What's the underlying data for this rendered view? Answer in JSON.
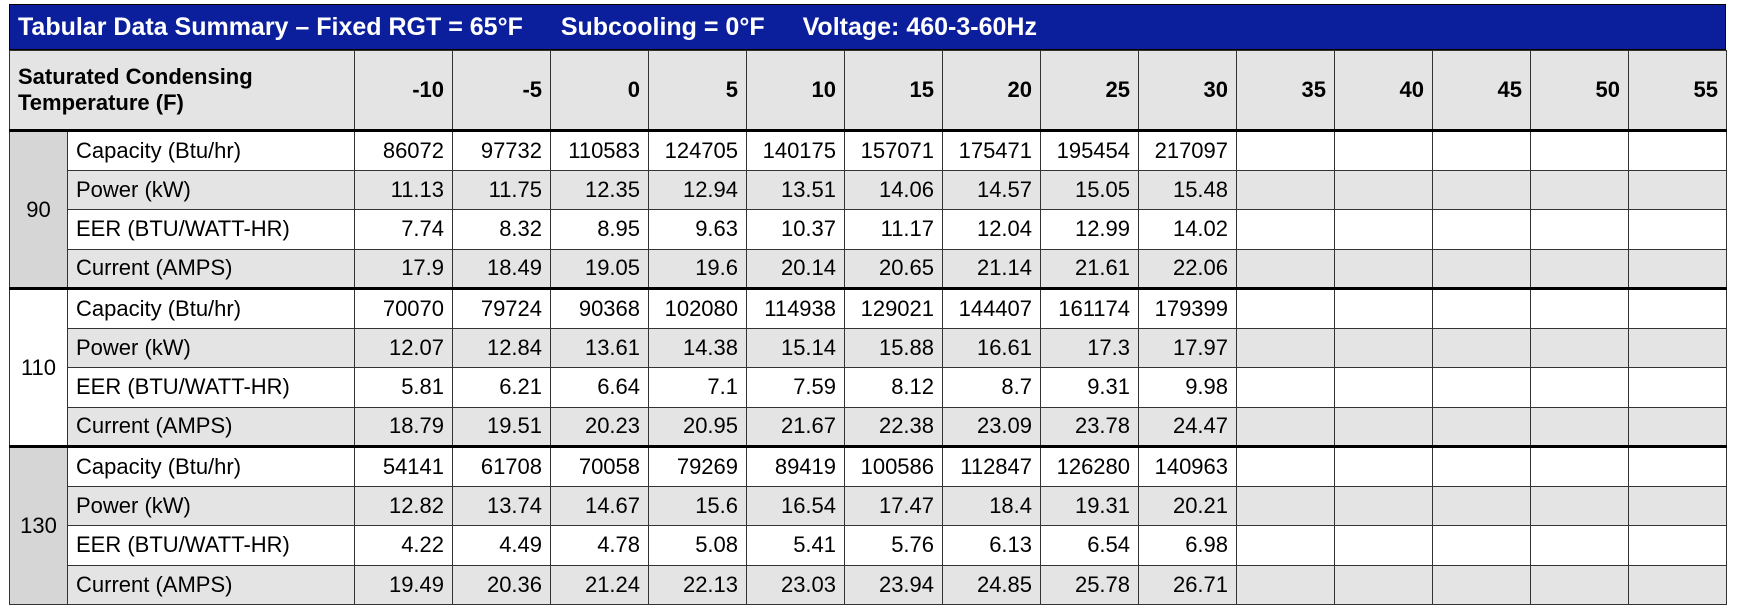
{
  "header": {
    "title_parts": [
      "Tabular Data Summary – Fixed RGT = 65°F",
      "Subcooling = 0°F",
      "Voltage: 460-3-60Hz"
    ]
  },
  "table": {
    "header_label": "Saturated Condensing Temperature (F)",
    "columns": [
      "-10",
      "-5",
      "0",
      "5",
      "10",
      "15",
      "20",
      "25",
      "30",
      "35",
      "40",
      "45",
      "50",
      "55"
    ],
    "groups": [
      {
        "label": "90",
        "rows": [
          {
            "label": "Capacity (Btu/hr)",
            "values": [
              86072,
              97732,
              110583,
              124705,
              140175,
              157071,
              175471,
              195454,
              217097
            ]
          },
          {
            "label": "Power (kW)",
            "values": [
              11.13,
              11.75,
              12.35,
              12.94,
              13.51,
              14.06,
              14.57,
              15.05,
              15.48
            ]
          },
          {
            "label": "EER (BTU/WATT-HR)",
            "values": [
              7.74,
              8.32,
              8.95,
              9.63,
              10.37,
              11.17,
              12.04,
              12.99,
              14.02
            ]
          },
          {
            "label": "Current (AMPS)",
            "values": [
              17.9,
              18.49,
              19.05,
              19.6,
              20.14,
              20.65,
              21.14,
              21.61,
              22.06
            ]
          }
        ]
      },
      {
        "label": "110",
        "rows": [
          {
            "label": "Capacity (Btu/hr)",
            "values": [
              70070,
              79724,
              90368,
              102080,
              114938,
              129021,
              144407,
              161174,
              179399
            ]
          },
          {
            "label": "Power (kW)",
            "values": [
              12.07,
              12.84,
              13.61,
              14.38,
              15.14,
              15.88,
              16.61,
              17.3,
              17.97
            ]
          },
          {
            "label": "EER (BTU/WATT-HR)",
            "values": [
              5.81,
              6.21,
              6.64,
              7.1,
              7.59,
              8.12,
              8.7,
              9.31,
              9.98
            ]
          },
          {
            "label": "Current (AMPS)",
            "values": [
              18.79,
              19.51,
              20.23,
              20.95,
              21.67,
              22.38,
              23.09,
              23.78,
              24.47
            ]
          }
        ]
      },
      {
        "label": "130",
        "rows": [
          {
            "label": "Capacity (Btu/hr)",
            "values": [
              54141,
              61708,
              70058,
              79269,
              89419,
              100586,
              112847,
              126280,
              140963
            ]
          },
          {
            "label": "Power (kW)",
            "values": [
              12.82,
              13.74,
              14.67,
              15.6,
              16.54,
              17.47,
              18.4,
              19.31,
              20.21
            ]
          },
          {
            "label": "EER (BTU/WATT-HR)",
            "values": [
              4.22,
              4.49,
              4.78,
              5.08,
              5.41,
              5.76,
              6.13,
              6.54,
              6.98
            ]
          },
          {
            "label": "Current (AMPS)",
            "values": [
              19.49,
              20.36,
              21.24,
              22.13,
              23.03,
              23.94,
              24.85,
              25.78,
              26.71
            ]
          }
        ]
      }
    ]
  }
}
